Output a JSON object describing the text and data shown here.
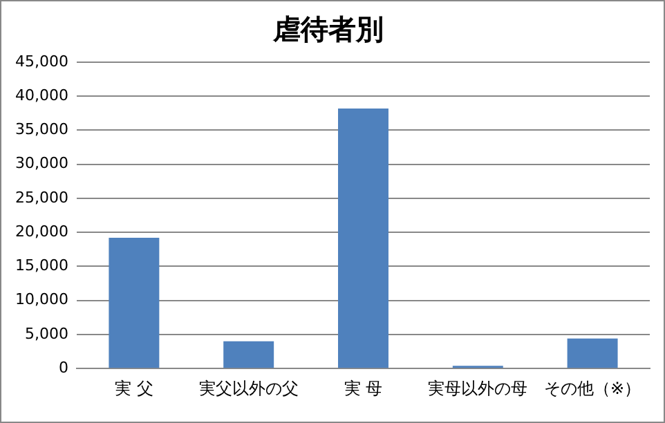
{
  "chart_data": {
    "type": "bar",
    "title": "虐待者別",
    "categories": [
      "実 父",
      "実父以外の父",
      "実 母",
      "実母以外の母",
      "その他（※）"
    ],
    "values": [
      19200,
      4000,
      38200,
      400,
      4400
    ],
    "color": "#4f81bd",
    "ylim": [
      0,
      45000
    ],
    "yticks": [
      0,
      {
        "value": 5000,
        "label": "5,000"
      },
      {
        "value": 10000,
        "label": "10,000"
      },
      {
        "value": 15000,
        "label": "15,000"
      },
      {
        "value": 20000,
        "label": "20,000"
      },
      {
        "value": 25000,
        "label": "25,000"
      },
      {
        "value": 30000,
        "label": "30,000"
      },
      {
        "value": 35000,
        "label": "35,000"
      },
      {
        "value": 40000,
        "label": "40,000"
      },
      {
        "value": 45000,
        "label": "45,000"
      }
    ],
    "grid": "y",
    "legend": false
  }
}
